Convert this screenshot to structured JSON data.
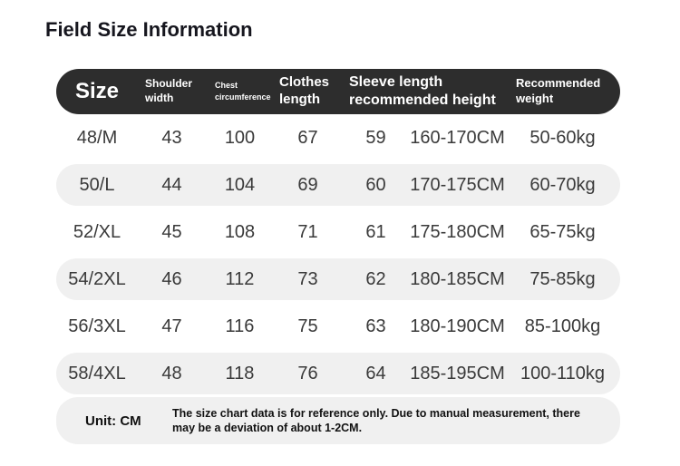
{
  "page": {
    "title": "Field Size Information"
  },
  "colors": {
    "header_bg": "#2d2d2d",
    "header_text": "#ffffff",
    "row_shaded_bg": "#f0f0f0",
    "body_text": "#3a3a3a"
  },
  "table": {
    "header": {
      "size": "Size",
      "shoulder": "Shoulder\nwidth",
      "chest": "Chest\ncircumference",
      "clothes": "Clothes\nlength",
      "sleeve": "Sleeve length\nrecommended height",
      "weight": "Recommended\nweight"
    },
    "rows": [
      [
        "48/M",
        "43",
        "100",
        "67",
        "59",
        "160-170CM",
        "50-60kg"
      ],
      [
        "50/L",
        "44",
        "104",
        "69",
        "60",
        "170-175CM",
        "60-70kg"
      ],
      [
        "52/XL",
        "45",
        "108",
        "71",
        "61",
        "175-180CM",
        "65-75kg"
      ],
      [
        "54/2XL",
        "46",
        "112",
        "73",
        "62",
        "180-185CM",
        "75-85kg"
      ],
      [
        "56/3XL",
        "47",
        "116",
        "75",
        "63",
        "180-190CM",
        "85-100kg"
      ],
      [
        "58/4XL",
        "48",
        "118",
        "76",
        "64",
        "185-195CM",
        "100-110kg"
      ]
    ]
  },
  "footer": {
    "unit_label": "Unit: CM",
    "note": "The size chart data is for reference only. Due to manual measurement, there\nmay be a deviation of about 1-2CM."
  },
  "chart_data": {
    "type": "table",
    "title": "Field Size Information",
    "columns": [
      "Size",
      "Shoulder width",
      "Chest circumference",
      "Clothes length",
      "Sleeve length",
      "Recommended height",
      "Recommended weight"
    ],
    "rows": [
      [
        "48/M",
        43,
        100,
        67,
        59,
        "160-170CM",
        "50-60kg"
      ],
      [
        "50/L",
        44,
        104,
        69,
        60,
        "170-175CM",
        "60-70kg"
      ],
      [
        "52/XL",
        45,
        108,
        71,
        61,
        "175-180CM",
        "65-75kg"
      ],
      [
        "54/2XL",
        46,
        112,
        73,
        62,
        "180-185CM",
        "75-85kg"
      ],
      [
        "56/3XL",
        47,
        116,
        75,
        63,
        "180-190CM",
        "85-100kg"
      ],
      [
        "58/4XL",
        48,
        118,
        76,
        64,
        "185-195CM",
        "100-110kg"
      ]
    ],
    "unit": "CM",
    "note": "The size chart data is for reference only. Due to manual measurement, there may be a deviation of about 1-2CM."
  }
}
